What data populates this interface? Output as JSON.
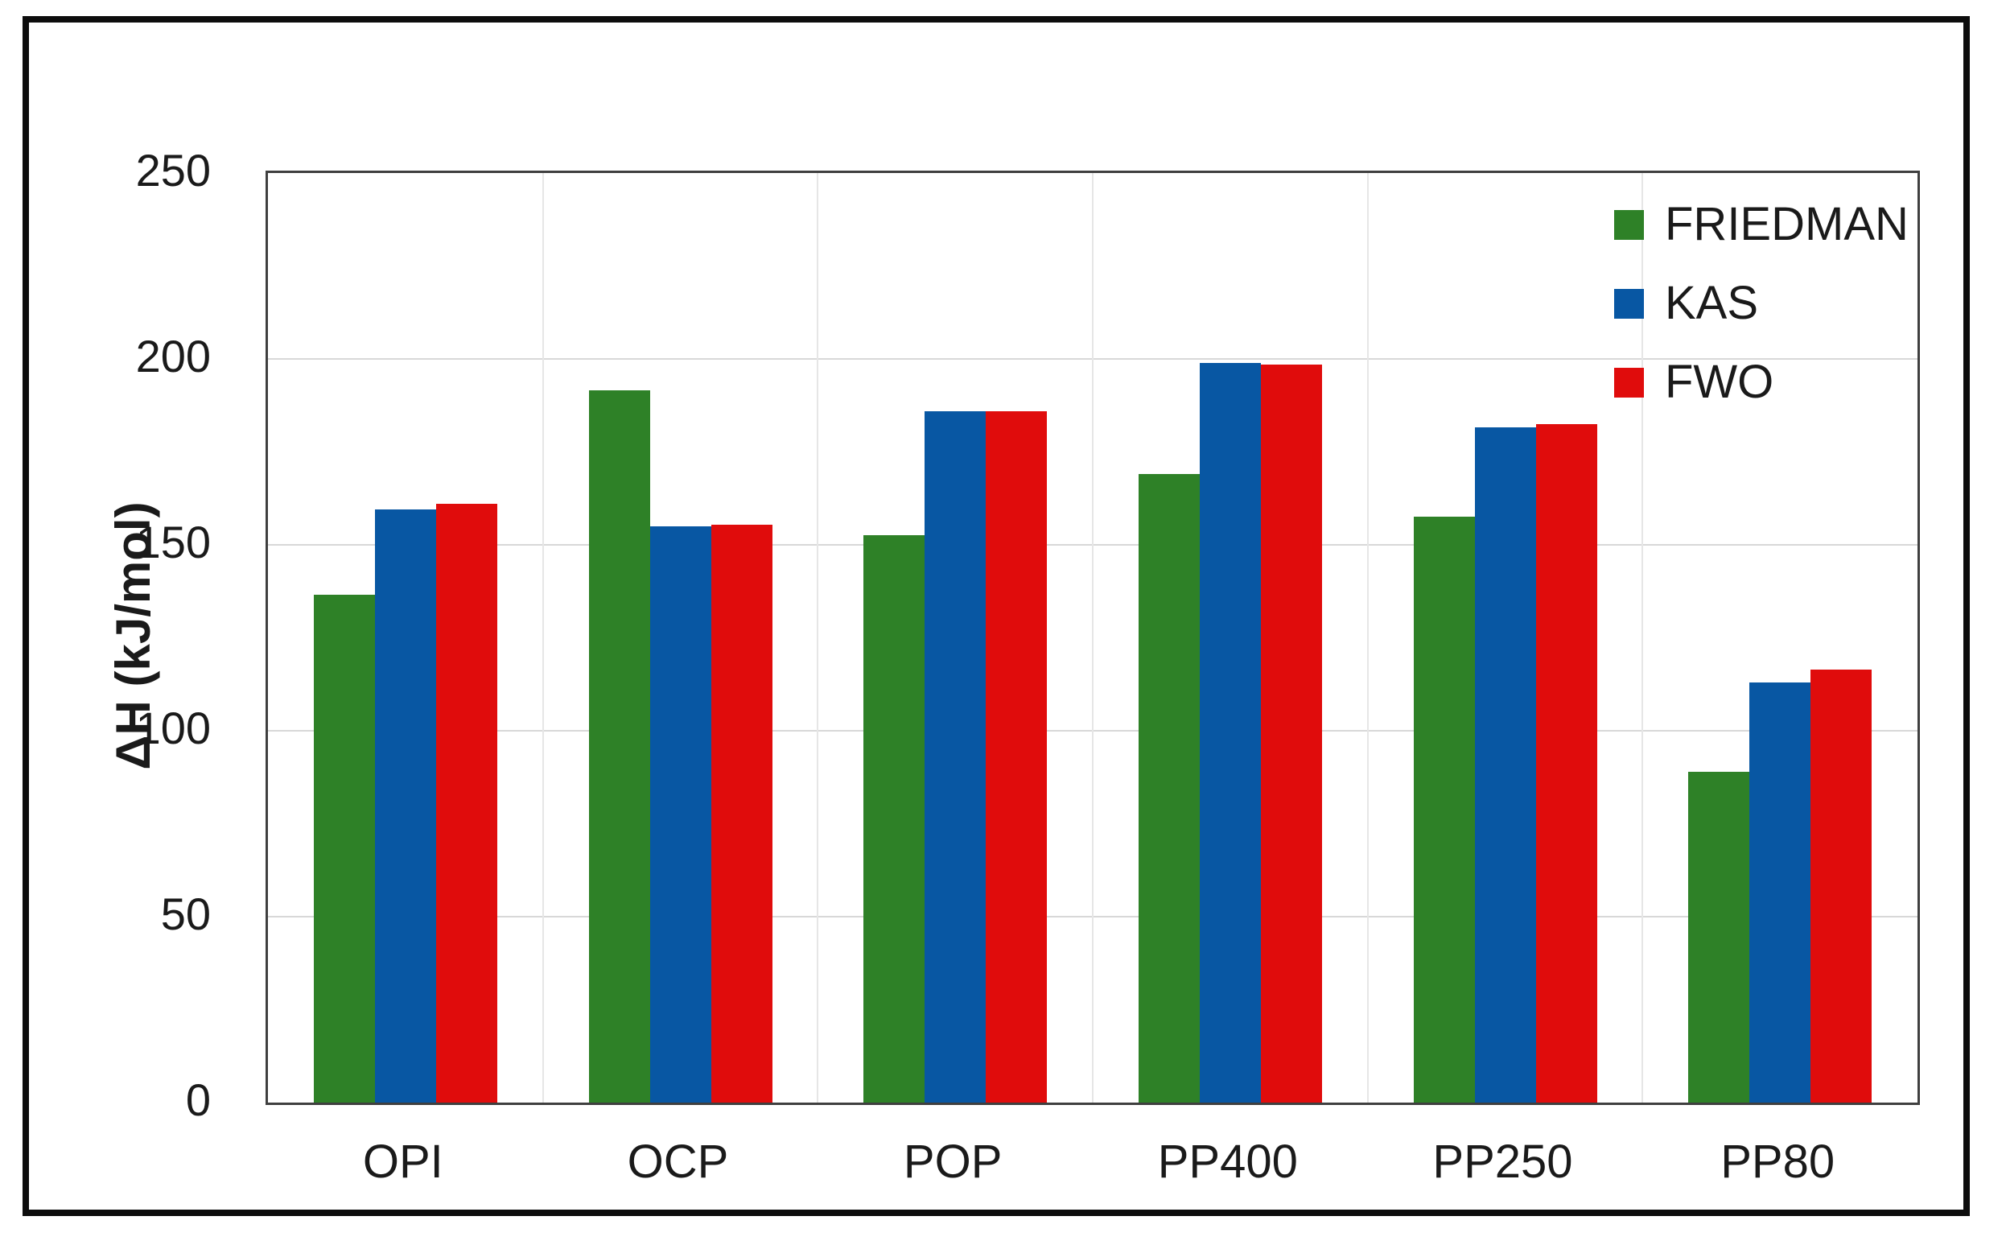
{
  "figure": {
    "background_color": "#ffffff",
    "outer_border_color": "#0d0d0d",
    "plot_border_color": "#3f3f3f",
    "hgrid_color": "#d8d8d8",
    "vgrid_color": "#e6e6e6",
    "text_color": "#1a1a1a"
  },
  "chart_data": {
    "type": "bar",
    "title": "",
    "xlabel": "",
    "ylabel": "ΔH (kJ/mol)",
    "ylim": [
      0,
      250
    ],
    "yticks": [
      0,
      50,
      100,
      150,
      200,
      250
    ],
    "grid": "both",
    "legend_position": "top-right",
    "categories": [
      "OPI",
      "OCP",
      "POP",
      "PP400",
      "PP250",
      "PP80"
    ],
    "series": [
      {
        "name": "FRIEDMAN",
        "color": "#2E8127",
        "values": [
          136.5,
          191.5,
          152.5,
          169,
          157.5,
          89
        ]
      },
      {
        "name": "KAS",
        "color": "#0857A3",
        "values": [
          159.5,
          155,
          186,
          199,
          181.5,
          113
        ]
      },
      {
        "name": "FWO",
        "color": "#E00C0C",
        "values": [
          161,
          155.5,
          186,
          198.5,
          182.5,
          116.5
        ]
      }
    ]
  }
}
